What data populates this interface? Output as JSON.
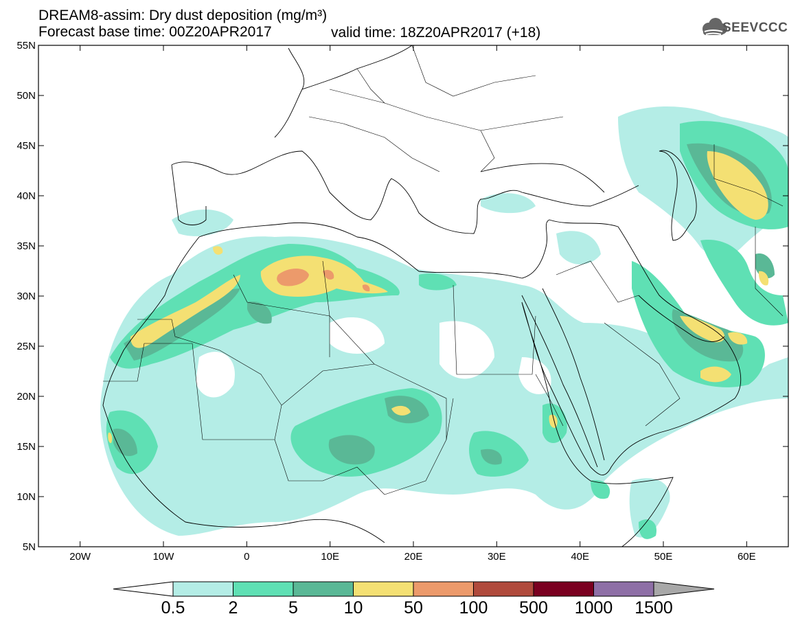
{
  "header": {
    "title_line1": "DREAM8-assim: Dry dust deposition (mg/m³)",
    "title_line2": "Forecast base time: 00Z20APR2017",
    "valid_time": "valid time: 18Z20APR2017 (+18)",
    "logo_text": "SEEVCCC",
    "logo_icon": "cloud-icon"
  },
  "map": {
    "lon_range": [
      -25,
      65
    ],
    "lat_range": [
      5,
      55
    ],
    "lat_ticks": [
      "55N",
      "50N",
      "45N",
      "40N",
      "35N",
      "30N",
      "25N",
      "20N",
      "15N",
      "10N",
      "5N"
    ],
    "lon_ticks": [
      "20W",
      "10W",
      "0",
      "10E",
      "20E",
      "30E",
      "40E",
      "50E",
      "60E"
    ]
  },
  "colorbar": {
    "labels": [
      "0.5",
      "2",
      "5",
      "10",
      "50",
      "100",
      "500",
      "1000",
      "1500"
    ],
    "colors": [
      "#b4ede6",
      "#5fe0b4",
      "#5ab896",
      "#f4e073",
      "#ec9a6b",
      "#b04a3c",
      "#7a0020",
      "#8e6fa6",
      "#a8a8a8"
    ]
  }
}
